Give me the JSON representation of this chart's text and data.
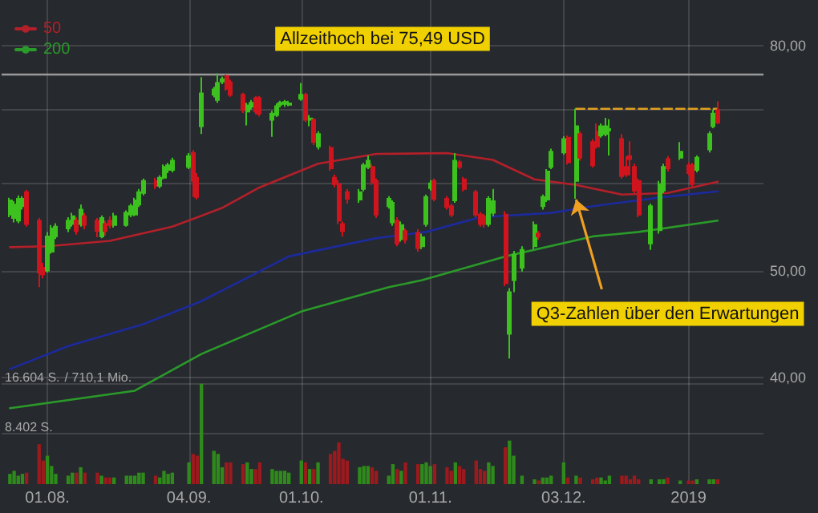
{
  "chart_data": {
    "type": "candlestick",
    "x": [
      "2018-07-23",
      "2018-07-24",
      "2018-07-25",
      "2018-07-26",
      "2018-07-27",
      "2018-07-30",
      "2018-07-31",
      "2018-08-01",
      "2018-08-02",
      "2018-08-03",
      "2018-08-06",
      "2018-08-07",
      "2018-08-08",
      "2018-08-09",
      "2018-08-10",
      "2018-08-13",
      "2018-08-14",
      "2018-08-15",
      "2018-08-16",
      "2018-08-17",
      "2018-08-20",
      "2018-08-21",
      "2018-08-22",
      "2018-08-23",
      "2018-08-24",
      "2018-08-27",
      "2018-08-28",
      "2018-08-29",
      "2018-08-30",
      "2018-08-31",
      "2018-09-04",
      "2018-09-05",
      "2018-09-06",
      "2018-09-07",
      "2018-09-10",
      "2018-09-11",
      "2018-09-12",
      "2018-09-13",
      "2018-09-14",
      "2018-09-17",
      "2018-09-18",
      "2018-09-19",
      "2018-09-20",
      "2018-09-21",
      "2018-09-24",
      "2018-09-25",
      "2018-09-26",
      "2018-09-27",
      "2018-09-28",
      "2018-10-01",
      "2018-10-02",
      "2018-10-03",
      "2018-10-04",
      "2018-10-05",
      "2018-10-08",
      "2018-10-09",
      "2018-10-10",
      "2018-10-11",
      "2018-10-12",
      "2018-10-15",
      "2018-10-16",
      "2018-10-17",
      "2018-10-18",
      "2018-10-19",
      "2018-10-22",
      "2018-10-23",
      "2018-10-24",
      "2018-10-25",
      "2018-10-26",
      "2018-10-29",
      "2018-10-30",
      "2018-10-31",
      "2018-11-01",
      "2018-11-02",
      "2018-11-05",
      "2018-11-06",
      "2018-11-07",
      "2018-11-08",
      "2018-11-09",
      "2018-11-12",
      "2018-11-13",
      "2018-11-14",
      "2018-11-15",
      "2018-11-16",
      "2018-11-19",
      "2018-11-20",
      "2018-11-21",
      "2018-11-23",
      "2018-11-26",
      "2018-11-27",
      "2018-11-28",
      "2018-11-29",
      "2018-11-30",
      "2018-12-03",
      "2018-12-04",
      "2018-12-06",
      "2018-12-07",
      "2018-12-10",
      "2018-12-11",
      "2018-12-12",
      "2018-12-13",
      "2018-12-14",
      "2018-12-17",
      "2018-12-18",
      "2018-12-19",
      "2018-12-20",
      "2018-12-21",
      "2018-12-24",
      "2018-12-26",
      "2018-12-27",
      "2018-12-28",
      "2018-12-31",
      "2019-01-02",
      "2019-01-03",
      "2019-01-04",
      "2019-01-07",
      "2019-01-08",
      "2019-01-09"
    ],
    "ohlc": [
      [
        56.2,
        58.2,
        55.9,
        57.9
      ],
      [
        55.8,
        57.8,
        55.3,
        57.4
      ],
      [
        55.5,
        58.5,
        55.2,
        58.1
      ],
      [
        57.2,
        58.4,
        56.8,
        58.1
      ],
      [
        58.9,
        59.2,
        54.8,
        55.1
      ],
      [
        55.5,
        55.8,
        48.3,
        49.8
      ],
      [
        50.3,
        50.8,
        49.2,
        49.6
      ],
      [
        50.0,
        54.2,
        49.8,
        53.7
      ],
      [
        52.0,
        55.0,
        51.8,
        54.6
      ],
      [
        53.7,
        55.2,
        53.4,
        54.8
      ],
      [
        54.6,
        55.9,
        54.2,
        55.5
      ],
      [
        55.1,
        56.4,
        54.8,
        56.0
      ],
      [
        55.5,
        55.9,
        53.9,
        54.3
      ],
      [
        55.1,
        57.4,
        54.8,
        56.8
      ],
      [
        56.0,
        56.4,
        54.5,
        55.0
      ],
      [
        55.5,
        55.8,
        53.6,
        54.3
      ],
      [
        53.7,
        56.1,
        53.5,
        55.8
      ],
      [
        55.1,
        55.5,
        53.8,
        54.3
      ],
      [
        55.5,
        56.0,
        54.6,
        55.0
      ],
      [
        55.0,
        56.4,
        54.7,
        56.0
      ],
      [
        55.0,
        56.7,
        54.8,
        56.4
      ],
      [
        56.2,
        57.5,
        55.9,
        57.2
      ],
      [
        56.2,
        58.2,
        56.0,
        57.9
      ],
      [
        57.4,
        59.3,
        57.1,
        58.9
      ],
      [
        58.8,
        60.6,
        58.5,
        60.3
      ],
      [
        60.3,
        60.7,
        59.3,
        59.7
      ],
      [
        59.7,
        61.0,
        59.4,
        60.7
      ],
      [
        60.7,
        62.4,
        60.5,
        62.1
      ],
      [
        61.7,
        62.6,
        61.3,
        62.3
      ],
      [
        61.7,
        63.3,
        61.4,
        62.9
      ],
      [
        62.1,
        63.9,
        61.8,
        63.5
      ],
      [
        63.9,
        64.3,
        58.3,
        60.3
      ],
      [
        60.7,
        61.3,
        58.0,
        58.3
      ],
      [
        67.6,
        74.9,
        66.5,
        72.4
      ],
      [
        72.2,
        73.4,
        71.8,
        73.0
      ],
      [
        71.4,
        75.49,
        71.0,
        74.0
      ],
      [
        74.2,
        75.0,
        73.8,
        74.6
      ],
      [
        75.1,
        75.3,
        72.8,
        73.1
      ],
      [
        74.1,
        74.5,
        71.9,
        72.2
      ],
      [
        72.2,
        72.5,
        69.5,
        69.9
      ],
      [
        69.7,
        71.0,
        67.7,
        70.6
      ],
      [
        70.4,
        71.4,
        70.0,
        71.0
      ],
      [
        71.7,
        72.0,
        69.3,
        69.7
      ],
      [
        71.7,
        72.0,
        69.0,
        69.4
      ],
      [
        68.5,
        69.8,
        66.1,
        69.4
      ],
      [
        69.2,
        70.9,
        68.9,
        70.5
      ],
      [
        70.7,
        71.3,
        70.3,
        71.0
      ],
      [
        70.8,
        71.4,
        70.4,
        71.1
      ],
      [
        70.7,
        71.3,
        70.5,
        70.9
      ],
      [
        71.6,
        74.0,
        71.3,
        72.2
      ],
      [
        72.2,
        72.5,
        68.2,
        68.5
      ],
      [
        68.5,
        69.2,
        67.6,
        68.7
      ],
      [
        68.5,
        68.8,
        65.0,
        65.4
      ],
      [
        64.8,
        66.9,
        64.4,
        66.5
      ],
      [
        64.6,
        64.9,
        61.6,
        61.9
      ],
      [
        60.7,
        61.1,
        59.5,
        59.9
      ],
      [
        59.9,
        60.4,
        55.1,
        55.5
      ],
      [
        55.1,
        55.4,
        53.7,
        54.3
      ],
      [
        58.9,
        59.3,
        57.5,
        58.1
      ],
      [
        58.0,
        59.3,
        57.6,
        58.9
      ],
      [
        59.3,
        62.6,
        59.0,
        62.3
      ],
      [
        62.1,
        63.6,
        61.8,
        62.9
      ],
      [
        62.1,
        62.5,
        59.8,
        60.1
      ],
      [
        60.3,
        60.6,
        55.8,
        56.2
      ],
      [
        57.2,
        58.4,
        56.9,
        58.1
      ],
      [
        55.3,
        57.9,
        54.9,
        57.6
      ],
      [
        55.5,
        55.9,
        52.6,
        52.9
      ],
      [
        53.4,
        55.4,
        53.1,
        55.0
      ],
      [
        54.3,
        54.6,
        52.9,
        53.3
      ],
      [
        54.1,
        54.5,
        52.0,
        52.4
      ],
      [
        52.6,
        54.0,
        52.3,
        53.6
      ],
      [
        55.1,
        58.6,
        54.8,
        58.3
      ],
      [
        59.4,
        60.4,
        59.1,
        60.0
      ],
      [
        60.3,
        60.6,
        57.8,
        58.1
      ],
      [
        58.1,
        58.4,
        56.8,
        57.1
      ],
      [
        57.2,
        57.5,
        55.9,
        56.2
      ],
      [
        57.9,
        63.9,
        57.6,
        62.9
      ],
      [
        62.7,
        63.0,
        61.8,
        62.1
      ],
      [
        60.5,
        60.8,
        59.0,
        59.3
      ],
      [
        58.9,
        59.2,
        55.9,
        56.2
      ],
      [
        56.2,
        56.5,
        54.8,
        55.1
      ],
      [
        56.0,
        56.3,
        54.7,
        55.1
      ],
      [
        55.1,
        58.4,
        54.8,
        58.1
      ],
      [
        56.4,
        59.3,
        56.0,
        57.8
      ],
      [
        56.2,
        56.6,
        48.4,
        48.7
      ],
      [
        43.8,
        48.2,
        41.6,
        47.8
      ],
      [
        49.0,
        52.1,
        47.8,
        51.7
      ],
      [
        50.3,
        52.6,
        49.9,
        52.2
      ],
      [
        52.6,
        55.4,
        52.3,
        55.0
      ],
      [
        54.0,
        54.3,
        53.3,
        53.7
      ],
      [
        57.2,
        58.6,
        56.8,
        58.3
      ],
      [
        58.0,
        61.8,
        57.7,
        61.5
      ],
      [
        62.1,
        64.5,
        61.8,
        64.1
      ],
      [
        64.0,
        66.2,
        63.7,
        65.8
      ],
      [
        66.0,
        66.3,
        62.4,
        62.7
      ],
      [
        60.3,
        70.1,
        58.1,
        67.6
      ],
      [
        66.5,
        66.9,
        62.9,
        63.3
      ],
      [
        65.4,
        65.8,
        62.0,
        62.3
      ],
      [
        66.8,
        68.0,
        64.5,
        64.8
      ],
      [
        66.3,
        68.0,
        66.0,
        67.6
      ],
      [
        66.5,
        68.8,
        66.2,
        67.6
      ],
      [
        67.0,
        68.6,
        63.6,
        67.2
      ],
      [
        65.8,
        66.5,
        60.6,
        60.9
      ],
      [
        62.1,
        63.5,
        60.8,
        61.1
      ],
      [
        63.5,
        65.5,
        61.0,
        63.1
      ],
      [
        62.1,
        62.5,
        58.8,
        59.1
      ],
      [
        60.3,
        60.6,
        55.9,
        56.2
      ],
      [
        52.9,
        57.5,
        52.2,
        57.2
      ],
      [
        54.4,
        60.3,
        54.0,
        59.9
      ],
      [
        59.1,
        62.5,
        58.8,
        62.1
      ],
      [
        63.1,
        63.5,
        61.5,
        61.9
      ],
      [
        63.3,
        65.4,
        63.0,
        64.1
      ],
      [
        62.3,
        62.7,
        61.0,
        61.3
      ],
      [
        62.3,
        62.6,
        59.6,
        59.9
      ],
      [
        61.7,
        63.6,
        61.4,
        63.3
      ],
      [
        64.4,
        66.9,
        64.0,
        66.5
      ],
      [
        67.6,
        70.0,
        67.3,
        69.4
      ],
      [
        69.9,
        71.2,
        67.9,
        68.1
      ]
    ],
    "colors": [
      "#3cc11e",
      "#3cc11e",
      "#3cc11e",
      "#3cc11e",
      "#d0141e",
      "#d0141e",
      "#d0141e",
      "#3cc11e",
      "#3cc11e",
      "#3cc11e",
      "#3cc11e",
      "#3cc11e",
      "#d0141e",
      "#3cc11e",
      "#d0141e",
      "#d0141e",
      "#3cc11e",
      "#d0141e",
      "#d0141e",
      "#3cc11e",
      "#3cc11e",
      "#3cc11e",
      "#3cc11e",
      "#3cc11e",
      "#3cc11e",
      "#d0141e",
      "#3cc11e",
      "#3cc11e",
      "#3cc11e",
      "#3cc11e",
      "#3cc11e",
      "#d0141e",
      "#d0141e",
      "#3cc11e",
      "#3cc11e",
      "#3cc11e",
      "#3cc11e",
      "#d0141e",
      "#d0141e",
      "#d0141e",
      "#3cc11e",
      "#3cc11e",
      "#d0141e",
      "#d0141e",
      "#3cc11e",
      "#3cc11e",
      "#3cc11e",
      "#3cc11e",
      "#3cc11e",
      "#3cc11e",
      "#d0141e",
      "#3cc11e",
      "#d0141e",
      "#3cc11e",
      "#d0141e",
      "#d0141e",
      "#d0141e",
      "#d0141e",
      "#d0141e",
      "#3cc11e",
      "#3cc11e",
      "#3cc11e",
      "#d0141e",
      "#d0141e",
      "#3cc11e",
      "#3cc11e",
      "#d0141e",
      "#3cc11e",
      "#d0141e",
      "#d0141e",
      "#3cc11e",
      "#3cc11e",
      "#3cc11e",
      "#d0141e",
      "#d0141e",
      "#d0141e",
      "#3cc11e",
      "#d0141e",
      "#d0141e",
      "#d0141e",
      "#d0141e",
      "#d0141e",
      "#3cc11e",
      "#3cc11e",
      "#d0141e",
      "#3cc11e",
      "#3cc11e",
      "#3cc11e",
      "#3cc11e",
      "#d0141e",
      "#3cc11e",
      "#3cc11e",
      "#3cc11e",
      "#3cc11e",
      "#d0141e",
      "#3cc11e",
      "#d0141e",
      "#d0141e",
      "#d0141e",
      "#3cc11e",
      "#3cc11e",
      "#3cc11e",
      "#d0141e",
      "#d0141e",
      "#d0141e",
      "#d0141e",
      "#d0141e",
      "#3cc11e",
      "#3cc11e",
      "#3cc11e",
      "#d0141e",
      "#3cc11e",
      "#d0141e",
      "#d0141e",
      "#3cc11e",
      "#3cc11e",
      "#3cc11e",
      "#d0141e"
    ],
    "series": [
      {
        "type": "line",
        "name": "50",
        "color": "#b3202a",
        "x": [
          "2018-07-23",
          "2018-08-01",
          "2018-08-16",
          "2018-08-31",
          "2018-09-12",
          "2018-09-21",
          "2018-10-05",
          "2018-10-19",
          "2018-11-05",
          "2018-11-16",
          "2018-11-26",
          "2018-12-06",
          "2018-12-17",
          "2018-12-28",
          "2019-01-09"
        ],
        "values": [
          52.5,
          52.6,
          53.2,
          54.8,
          57.0,
          59.5,
          62.5,
          63.8,
          63.9,
          63.0,
          60.5,
          59.8,
          58.6,
          58.8,
          60.2
        ]
      },
      {
        "type": "line",
        "color": "#1c2a9c",
        "x": [
          "2018-07-23",
          "2018-08-06",
          "2018-08-24",
          "2018-09-07",
          "2018-09-28",
          "2018-10-19",
          "2018-10-31",
          "2018-11-13",
          "2018-11-30",
          "2018-12-10",
          "2018-12-27",
          "2019-01-09"
        ],
        "values": [
          40.7,
          42.7,
          44.7,
          46.9,
          51.5,
          53.5,
          54.2,
          55.9,
          56.4,
          57.2,
          58.3,
          59.0
        ]
      },
      {
        "type": "line",
        "name": "200",
        "color": "#2a9a2a",
        "x": [
          "2018-07-23",
          "2018-08-22",
          "2018-09-07",
          "2018-10-01",
          "2018-10-22",
          "2018-10-30",
          "2018-11-19",
          "2018-12-10",
          "2018-12-21",
          "2019-01-09"
        ],
        "values": [
          37.5,
          38.9,
          42.0,
          45.9,
          48.3,
          49.0,
          51.5,
          53.7,
          54.2,
          55.5
        ]
      },
      {
        "type": "line",
        "color": "#e0a020",
        "line_style": "dashed",
        "x": [
          "2018-12-06",
          "2019-01-09"
        ],
        "values": [
          70.1,
          70.1
        ]
      },
      {
        "type": "bar",
        "axis": "y2",
        "values": [
          1700,
          2200,
          1400,
          1700,
          1900,
          6600,
          3900,
          4700,
          3000,
          1700,
          1400,
          1900,
          1900,
          2800,
          1900,
          1900,
          1400,
          1100,
          1100,
          1100,
          1400,
          1400,
          1400,
          1900,
          1900,
          1400,
          1100,
          2200,
          1700,
          1900,
          3600,
          5000,
          4700,
          16600,
          5500,
          5000,
          2800,
          3600,
          3600,
          3300,
          3600,
          2500,
          2500,
          3600,
          2500,
          2200,
          2200,
          2200,
          1900,
          3900,
          3600,
          2500,
          2500,
          3600,
          5000,
          5500,
          6900,
          4200,
          3900,
          2800,
          3000,
          3000,
          2800,
          2200,
          1400,
          3300,
          2500,
          2200,
          3600,
          3300,
          3300,
          3600,
          3000,
          3300,
          2800,
          2200,
          3600,
          3000,
          2500,
          3900,
          2500,
          2200,
          3600,
          3000,
          6100,
          7200,
          4700,
          1400,
          800,
          600,
          1100,
          1100,
          1400,
          3600,
          1100,
          1400,
          1100,
          800,
          1100,
          1100,
          600,
          1400,
          1400,
          1400,
          800,
          1400,
          800,
          800,
          800,
          800,
          1100,
          600,
          600,
          600,
          800,
          800,
          800,
          800
        ],
        "colors": [
          "#2f8a1c",
          "#2f8a1c",
          "#2f8a1c",
          "#2f8a1c",
          "#9a1a1e",
          "#9a1a1e",
          "#9a1a1e",
          "#2f8a1c",
          "#2f8a1c",
          "#2f8a1c",
          "#2f8a1c",
          "#2f8a1c",
          "#9a1a1e",
          "#2f8a1c",
          "#9a1a1e",
          "#9a1a1e",
          "#2f8a1c",
          "#9a1a1e",
          "#9a1a1e",
          "#2f8a1c",
          "#2f8a1c",
          "#2f8a1c",
          "#2f8a1c",
          "#2f8a1c",
          "#2f8a1c",
          "#9a1a1e",
          "#2f8a1c",
          "#2f8a1c",
          "#2f8a1c",
          "#2f8a1c",
          "#2f8a1c",
          "#9a1a1e",
          "#9a1a1e",
          "#2f8a1c",
          "#2f8a1c",
          "#2f8a1c",
          "#2f8a1c",
          "#9a1a1e",
          "#9a1a1e",
          "#9a1a1e",
          "#2f8a1c",
          "#2f8a1c",
          "#9a1a1e",
          "#9a1a1e",
          "#2f8a1c",
          "#2f8a1c",
          "#2f8a1c",
          "#2f8a1c",
          "#2f8a1c",
          "#2f8a1c",
          "#9a1a1e",
          "#2f8a1c",
          "#9a1a1e",
          "#2f8a1c",
          "#9a1a1e",
          "#9a1a1e",
          "#9a1a1e",
          "#9a1a1e",
          "#9a1a1e",
          "#2f8a1c",
          "#2f8a1c",
          "#2f8a1c",
          "#9a1a1e",
          "#9a1a1e",
          "#2f8a1c",
          "#2f8a1c",
          "#9a1a1e",
          "#2f8a1c",
          "#9a1a1e",
          "#9a1a1e",
          "#2f8a1c",
          "#2f8a1c",
          "#2f8a1c",
          "#9a1a1e",
          "#9a1a1e",
          "#9a1a1e",
          "#2f8a1c",
          "#9a1a1e",
          "#9a1a1e",
          "#9a1a1e",
          "#9a1a1e",
          "#9a1a1e",
          "#2f8a1c",
          "#2f8a1c",
          "#9a1a1e",
          "#2f8a1c",
          "#2f8a1c",
          "#2f8a1c",
          "#2f8a1c",
          "#9a1a1e",
          "#2f8a1c",
          "#2f8a1c",
          "#2f8a1c",
          "#2f8a1c",
          "#9a1a1e",
          "#2f8a1c",
          "#9a1a1e",
          "#9a1a1e",
          "#9a1a1e",
          "#2f8a1c",
          "#2f8a1c",
          "#2f8a1c",
          "#9a1a1e",
          "#9a1a1e",
          "#9a1a1e",
          "#9a1a1e",
          "#9a1a1e",
          "#2f8a1c",
          "#2f8a1c",
          "#2f8a1c",
          "#9a1a1e",
          "#2f8a1c",
          "#9a1a1e",
          "#9a1a1e",
          "#2f8a1c",
          "#2f8a1c",
          "#2f8a1c",
          "#9a1a1e"
        ]
      }
    ],
    "xlim": [
      "2018-07-21",
      "2019-01-20"
    ],
    "xticks": [
      {
        "value": "2018-08-01",
        "label": "01.08."
      },
      {
        "value": "2018-09-04",
        "label": "04.09."
      },
      {
        "value": "2018-10-01",
        "label": "01.10."
      },
      {
        "value": "2018-11-01",
        "label": "01.11."
      },
      {
        "value": "2018-12-03",
        "label": "03.12."
      },
      {
        "value": "2019-01-02",
        "label": "2019"
      }
    ],
    "ylim": [
      32,
      88
    ],
    "yticks": [
      {
        "value": 40,
        "label": "40,00"
      },
      {
        "value": 50,
        "label": "50,00"
      },
      {
        "value": 60,
        "label": null
      },
      {
        "value": 70,
        "label": null
      },
      {
        "value": 80,
        "label": "80,00"
      }
    ],
    "y2lim": [
      0,
      80000
    ],
    "y2ticks": [
      {
        "value": 8402,
        "label": "8.402 S."
      },
      {
        "value": 16604,
        "label": "16.604 S."
      }
    ],
    "log": "y",
    "grid": true,
    "legend": "top left",
    "marker": "none",
    "ref_lines": [
      {
        "axis": "y",
        "value": 75.49,
        "label": "Allzeithoch bei 75,49 USD",
        "color": "#9a9a9a"
      }
    ],
    "annotations": [
      {
        "text": "Q3-Zahlen über den Erwartungen",
        "x": "2018-12-06",
        "y": 58
      },
      "/ 710,1 Mio."
    ]
  }
}
